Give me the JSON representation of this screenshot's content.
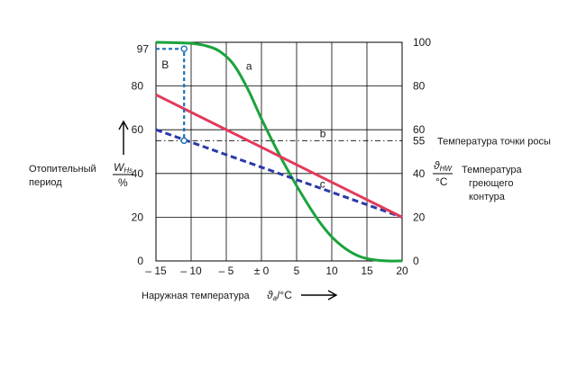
{
  "chart_data": {
    "type": "line",
    "x_axis": {
      "label_prefix": "Наружная  температура",
      "symbol": "ϑ",
      "symbol_sub": "a",
      "unit": "/°C",
      "ticks": [
        {
          "v": -15,
          "label": "– 15"
        },
        {
          "v": -10,
          "label": "– 10"
        },
        {
          "v": -5,
          "label": "– 5"
        },
        {
          "v": 0,
          "label": "± 0"
        },
        {
          "v": 5,
          "label": "5"
        },
        {
          "v": 10,
          "label": "10"
        },
        {
          "v": 15,
          "label": "15"
        },
        {
          "v": 20,
          "label": "20"
        }
      ],
      "range": [
        -15,
        20
      ]
    },
    "y_left": {
      "ticks": [
        0,
        20,
        40,
        60,
        80
      ],
      "range": [
        0,
        100
      ],
      "highlight_tick": "97",
      "symbol": "W",
      "symbol_sub": "Hs",
      "unit": "%"
    },
    "y_right": {
      "ticks": [
        0,
        20,
        40,
        60,
        80,
        100
      ],
      "range": [
        0,
        100
      ],
      "highlight_tick": "55",
      "symbol": "ϑ",
      "symbol_sub": "HW",
      "unit": "°C"
    },
    "left_side_label": [
      "Отопительный",
      "период"
    ],
    "right_side_label": [
      "Температура",
      "греющего",
      "контура"
    ],
    "dew_point_label": "Температура точки росы",
    "dew_point": 55,
    "series": [
      {
        "name": "a",
        "color": "#1aa33c",
        "style": "solid",
        "x": [
          -15,
          -12,
          -10,
          -8,
          -6,
          -4,
          -2,
          0,
          2,
          4,
          6,
          8,
          10,
          12,
          14,
          16,
          18,
          20
        ],
        "y": [
          100,
          99.8,
          99.5,
          98.5,
          96,
          90,
          79,
          65,
          52,
          40,
          29,
          19,
          11,
          5.5,
          2,
          0.5,
          0,
          0
        ]
      },
      {
        "name": "b",
        "color": "#000000",
        "style": "dashdot",
        "x": [
          -15,
          20
        ],
        "y": [
          55,
          55
        ]
      },
      {
        "name": "c",
        "color": "#2a3aa8",
        "style": "dashed",
        "x": [
          -15,
          20
        ],
        "y": [
          60,
          20
        ]
      },
      {
        "name": "",
        "color": "#e23a5a",
        "style": "solid",
        "x": [
          -15,
          20
        ],
        "y": [
          76,
          20
        ]
      }
    ],
    "region_label": "B",
    "annotation_marker": {
      "x": -11,
      "y_top": 97,
      "y_bottom": 55
    },
    "grid": true
  },
  "colors": {
    "axis_highlight": "#1a6fb5",
    "marker_dash": "#1a6fb5"
  }
}
